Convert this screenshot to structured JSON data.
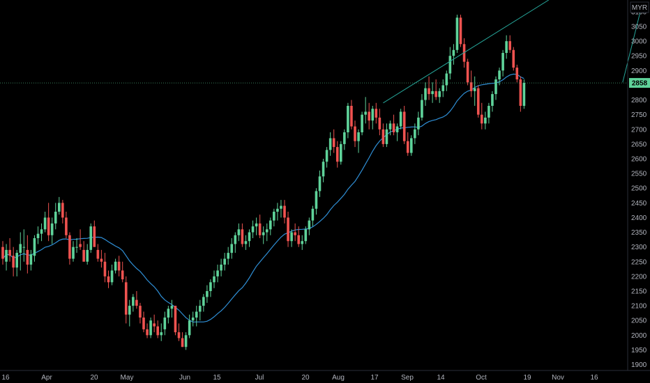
{
  "currency": "MYR",
  "current_price": "2858",
  "colors": {
    "background": "#000000",
    "up": "#26a69a",
    "up_body": "#5fd39a",
    "down": "#ef5350",
    "sma": "#2f8fd6",
    "trendline": "#26a69a",
    "axis_text": "#b2b5be",
    "price_label_bg": "#5fd39a"
  },
  "chart_data": {
    "type": "candlestick",
    "y_range": [
      1880,
      3140
    ],
    "y_ticks": [
      1900,
      1950,
      2000,
      2050,
      2100,
      2150,
      2200,
      2250,
      2300,
      2350,
      2400,
      2450,
      2500,
      2550,
      2600,
      2650,
      2700,
      2750,
      2800,
      2850,
      2900,
      2950,
      3000,
      3050,
      3100
    ],
    "x_tick_labels": [
      "16",
      "Apr",
      "20",
      "May",
      "Jun",
      "15",
      "Jul",
      "20",
      "Aug",
      "17",
      "Sep",
      "14",
      "Oct",
      "19",
      "Nov",
      "16"
    ],
    "series": [
      {
        "type": "candles",
        "columns": [
          "open",
          "high",
          "low",
          "close"
        ],
        "values": [
          [
            2300,
            2320,
            2240,
            2260
          ],
          [
            2250,
            2310,
            2220,
            2290
          ],
          [
            2290,
            2330,
            2250,
            2270
          ],
          [
            2270,
            2300,
            2200,
            2230
          ],
          [
            2230,
            2290,
            2200,
            2280
          ],
          [
            2280,
            2350,
            2220,
            2310
          ],
          [
            2300,
            2360,
            2250,
            2300
          ],
          [
            2290,
            2340,
            2210,
            2240
          ],
          [
            2240,
            2290,
            2220,
            2275
          ],
          [
            2270,
            2340,
            2250,
            2330
          ],
          [
            2330,
            2370,
            2310,
            2345
          ],
          [
            2345,
            2380,
            2320,
            2360
          ],
          [
            2360,
            2420,
            2350,
            2400
          ],
          [
            2400,
            2450,
            2320,
            2340
          ],
          [
            2340,
            2400,
            2310,
            2380
          ],
          [
            2380,
            2450,
            2360,
            2420
          ],
          [
            2420,
            2470,
            2410,
            2450
          ],
          [
            2450,
            2460,
            2380,
            2400
          ],
          [
            2400,
            2420,
            2330,
            2340
          ],
          [
            2340,
            2350,
            2240,
            2260
          ],
          [
            2260,
            2320,
            2250,
            2300
          ],
          [
            2300,
            2330,
            2280,
            2300
          ],
          [
            2310,
            2360,
            2290,
            2300
          ],
          [
            2290,
            2320,
            2250,
            2250
          ],
          [
            2250,
            2310,
            2240,
            2290
          ],
          [
            2290,
            2380,
            2280,
            2370
          ],
          [
            2370,
            2390,
            2300,
            2300
          ],
          [
            2290,
            2310,
            2250,
            2260
          ],
          [
            2260,
            2290,
            2230,
            2250
          ],
          [
            2250,
            2280,
            2180,
            2200
          ],
          [
            2200,
            2220,
            2160,
            2180
          ],
          [
            2180,
            2240,
            2170,
            2220
          ],
          [
            2220,
            2260,
            2210,
            2250
          ],
          [
            2250,
            2270,
            2200,
            2220
          ],
          [
            2220,
            2250,
            2180,
            2190
          ],
          [
            2180,
            2200,
            2040,
            2070
          ],
          [
            2070,
            2120,
            2030,
            2100
          ],
          [
            2100,
            2140,
            2080,
            2130
          ],
          [
            2120,
            2150,
            2090,
            2100
          ],
          [
            2100,
            2110,
            2040,
            2060
          ],
          [
            2060,
            2080,
            2010,
            2020
          ],
          [
            2020,
            2040,
            1990,
            2000
          ],
          [
            2000,
            2060,
            1990,
            2050
          ],
          [
            2040,
            2070,
            2010,
            2030
          ],
          [
            2030,
            2050,
            1990,
            2000
          ],
          [
            2000,
            2040,
            1980,
            2010
          ],
          [
            2020,
            2080,
            2000,
            2060
          ],
          [
            2060,
            2100,
            2040,
            2090
          ],
          [
            2090,
            2120,
            2060,
            2100
          ],
          [
            2100,
            2090,
            2000,
            2010
          ],
          [
            2010,
            2040,
            1980,
            1990
          ],
          [
            1990,
            2010,
            1960,
            1960
          ],
          [
            1960,
            2010,
            1950,
            2000
          ],
          [
            2000,
            2070,
            1990,
            2050
          ],
          [
            2050,
            2080,
            2030,
            2060
          ],
          [
            2060,
            2100,
            2030,
            2080
          ],
          [
            2080,
            2120,
            2050,
            2100
          ],
          [
            2100,
            2140,
            2080,
            2130
          ],
          [
            2130,
            2170,
            2110,
            2150
          ],
          [
            2150,
            2190,
            2130,
            2180
          ],
          [
            2180,
            2220,
            2160,
            2200
          ],
          [
            2200,
            2240,
            2180,
            2220
          ],
          [
            2220,
            2260,
            2200,
            2240
          ],
          [
            2240,
            2280,
            2220,
            2260
          ],
          [
            2260,
            2300,
            2240,
            2280
          ],
          [
            2280,
            2330,
            2260,
            2310
          ],
          [
            2310,
            2350,
            2280,
            2340
          ],
          [
            2340,
            2380,
            2320,
            2360
          ],
          [
            2360,
            2380,
            2300,
            2310
          ],
          [
            2310,
            2340,
            2290,
            2320
          ],
          [
            2320,
            2360,
            2300,
            2350
          ],
          [
            2350,
            2390,
            2330,
            2370
          ],
          [
            2370,
            2400,
            2340,
            2380
          ],
          [
            2380,
            2410,
            2330,
            2340
          ],
          [
            2340,
            2370,
            2310,
            2350
          ],
          [
            2350,
            2380,
            2320,
            2360
          ],
          [
            2360,
            2400,
            2340,
            2390
          ],
          [
            2390,
            2430,
            2370,
            2420
          ],
          [
            2420,
            2450,
            2390,
            2430
          ],
          [
            2430,
            2460,
            2400,
            2440
          ],
          [
            2440,
            2460,
            2380,
            2400
          ],
          [
            2400,
            2420,
            2300,
            2320
          ],
          [
            2320,
            2360,
            2300,
            2350
          ],
          [
            2350,
            2380,
            2320,
            2340
          ],
          [
            2340,
            2370,
            2300,
            2310
          ],
          [
            2310,
            2340,
            2290,
            2320
          ],
          [
            2320,
            2370,
            2310,
            2360
          ],
          [
            2360,
            2400,
            2340,
            2390
          ],
          [
            2390,
            2440,
            2370,
            2430
          ],
          [
            2430,
            2500,
            2410,
            2490
          ],
          [
            2490,
            2560,
            2470,
            2540
          ],
          [
            2540,
            2600,
            2520,
            2590
          ],
          [
            2590,
            2640,
            2570,
            2630
          ],
          [
            2630,
            2690,
            2610,
            2670
          ],
          [
            2670,
            2700,
            2620,
            2640
          ],
          [
            2640,
            2660,
            2570,
            2590
          ],
          [
            2590,
            2660,
            2580,
            2650
          ],
          [
            2650,
            2700,
            2630,
            2690
          ],
          [
            2690,
            2790,
            2670,
            2780
          ],
          [
            2780,
            2800,
            2700,
            2710
          ],
          [
            2710,
            2730,
            2640,
            2660
          ],
          [
            2660,
            2700,
            2620,
            2690
          ],
          [
            2690,
            2760,
            2680,
            2750
          ],
          [
            2750,
            2810,
            2720,
            2760
          ],
          [
            2760,
            2790,
            2700,
            2730
          ],
          [
            2730,
            2780,
            2700,
            2770
          ],
          [
            2770,
            2790,
            2720,
            2740
          ],
          [
            2740,
            2770,
            2680,
            2700
          ],
          [
            2700,
            2720,
            2640,
            2650
          ],
          [
            2650,
            2720,
            2640,
            2700
          ],
          [
            2700,
            2730,
            2680,
            2720
          ],
          [
            2720,
            2750,
            2680,
            2690
          ],
          [
            2690,
            2720,
            2660,
            2710
          ],
          [
            2710,
            2770,
            2700,
            2760
          ],
          [
            2760,
            2780,
            2650,
            2660
          ],
          [
            2660,
            2690,
            2610,
            2620
          ],
          [
            2620,
            2680,
            2610,
            2670
          ],
          [
            2670,
            2720,
            2650,
            2700
          ],
          [
            2700,
            2760,
            2680,
            2740
          ],
          [
            2740,
            2820,
            2730,
            2800
          ],
          [
            2800,
            2860,
            2780,
            2840
          ],
          [
            2840,
            2880,
            2800,
            2820
          ],
          [
            2820,
            2860,
            2790,
            2830
          ],
          [
            2830,
            2870,
            2800,
            2810
          ],
          [
            2810,
            2840,
            2790,
            2830
          ],
          [
            2830,
            2870,
            2810,
            2850
          ],
          [
            2850,
            2900,
            2830,
            2890
          ],
          [
            2890,
            2980,
            2870,
            2950
          ],
          [
            2950,
            2990,
            2920,
            2970
          ],
          [
            2970,
            3090,
            2960,
            3080
          ],
          [
            3080,
            3090,
            2980,
            2990
          ],
          [
            2990,
            3010,
            2910,
            2930
          ],
          [
            2930,
            2940,
            2850,
            2860
          ],
          [
            2860,
            2900,
            2810,
            2830
          ],
          [
            2830,
            2880,
            2780,
            2840
          ],
          [
            2840,
            2850,
            2740,
            2750
          ],
          [
            2750,
            2790,
            2700,
            2720
          ],
          [
            2720,
            2760,
            2700,
            2740
          ],
          [
            2740,
            2790,
            2720,
            2780
          ],
          [
            2780,
            2830,
            2760,
            2820
          ],
          [
            2820,
            2880,
            2800,
            2870
          ],
          [
            2870,
            2910,
            2850,
            2900
          ],
          [
            2900,
            2970,
            2880,
            2960
          ],
          [
            2960,
            3020,
            2940,
            3000
          ],
          [
            3000,
            3020,
            2960,
            2970
          ],
          [
            2970,
            2980,
            2900,
            2910
          ],
          [
            2910,
            2920,
            2860,
            2870
          ],
          [
            2870,
            2880,
            2760,
            2780
          ],
          [
            2780,
            2870,
            2770,
            2858
          ]
        ]
      },
      {
        "type": "sma",
        "name": "",
        "values": []
      }
    ],
    "trendlines": [
      {
        "from": {
          "bar": 108,
          "price": 2790
        },
        "to": {
          "bar": 155,
          "price": 3140
        }
      },
      {
        "from": {
          "bar": 176,
          "price": 2860
        },
        "to": {
          "bar": 181,
          "price": 3100
        }
      }
    ]
  }
}
